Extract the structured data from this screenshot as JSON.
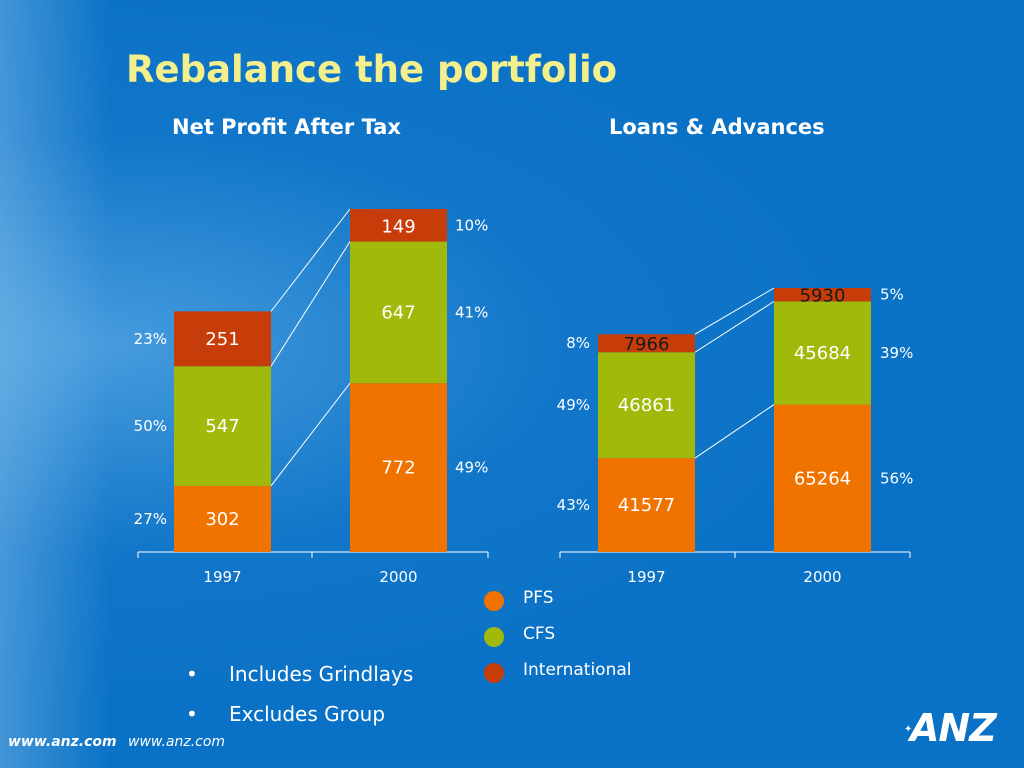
{
  "slide": {
    "title": "Rebalance the portfolio",
    "bullets": [
      "Includes Grindlays",
      "Excludes Group"
    ],
    "bullet_symbol": "•",
    "footer_urls": [
      "www.anz.com",
      "www.anz.com"
    ],
    "logo_text": "ANZ"
  },
  "colors": {
    "background": "#0a72c6",
    "title": "#f3ef8d",
    "PFS": "#f07300",
    "CFS": "#a0b90a",
    "International": "#c73d0a"
  },
  "legend": [
    {
      "name": "PFS",
      "color": "#f07300"
    },
    {
      "name": "CFS",
      "color": "#a0b90a"
    },
    {
      "name": "International",
      "color": "#c73d0a"
    }
  ],
  "chart_data": [
    {
      "type": "bar",
      "stacked": true,
      "title": "Net Profit After Tax",
      "categories": [
        "1997",
        "2000"
      ],
      "series": [
        {
          "name": "PFS",
          "values": [
            302,
            772
          ],
          "labels": [
            "302",
            "772"
          ],
          "percent_labels": [
            "27%",
            "49%"
          ]
        },
        {
          "name": "CFS",
          "values": [
            547,
            647
          ],
          "labels": [
            "547",
            "647"
          ],
          "percent_labels": [
            "50%",
            "41%"
          ]
        },
        {
          "name": "International",
          "values": [
            251,
            149
          ],
          "labels": [
            "251",
            "149"
          ],
          "percent_labels": [
            "23%",
            "10%"
          ]
        }
      ],
      "ylim": [
        0,
        1568
      ],
      "legend_position": "bottom"
    },
    {
      "type": "bar",
      "stacked": true,
      "title": "Loans & Advances",
      "categories": [
        "1997",
        "2000"
      ],
      "series": [
        {
          "name": "PFS",
          "values": [
            41577,
            65264
          ],
          "labels": [
            "41577",
            "65264"
          ],
          "percent_labels": [
            "43%",
            "56%"
          ]
        },
        {
          "name": "CFS",
          "values": [
            46861,
            45684
          ],
          "labels": [
            "46861",
            "45684"
          ],
          "percent_labels": [
            "49%",
            "39%"
          ]
        },
        {
          "name": "International",
          "values": [
            7966,
            5930
          ],
          "labels": [
            "7966",
            "5930"
          ],
          "percent_labels": [
            "8%",
            "5%"
          ]
        }
      ],
      "ylim": [
        0,
        151850
      ],
      "legend_position": "bottom"
    }
  ]
}
